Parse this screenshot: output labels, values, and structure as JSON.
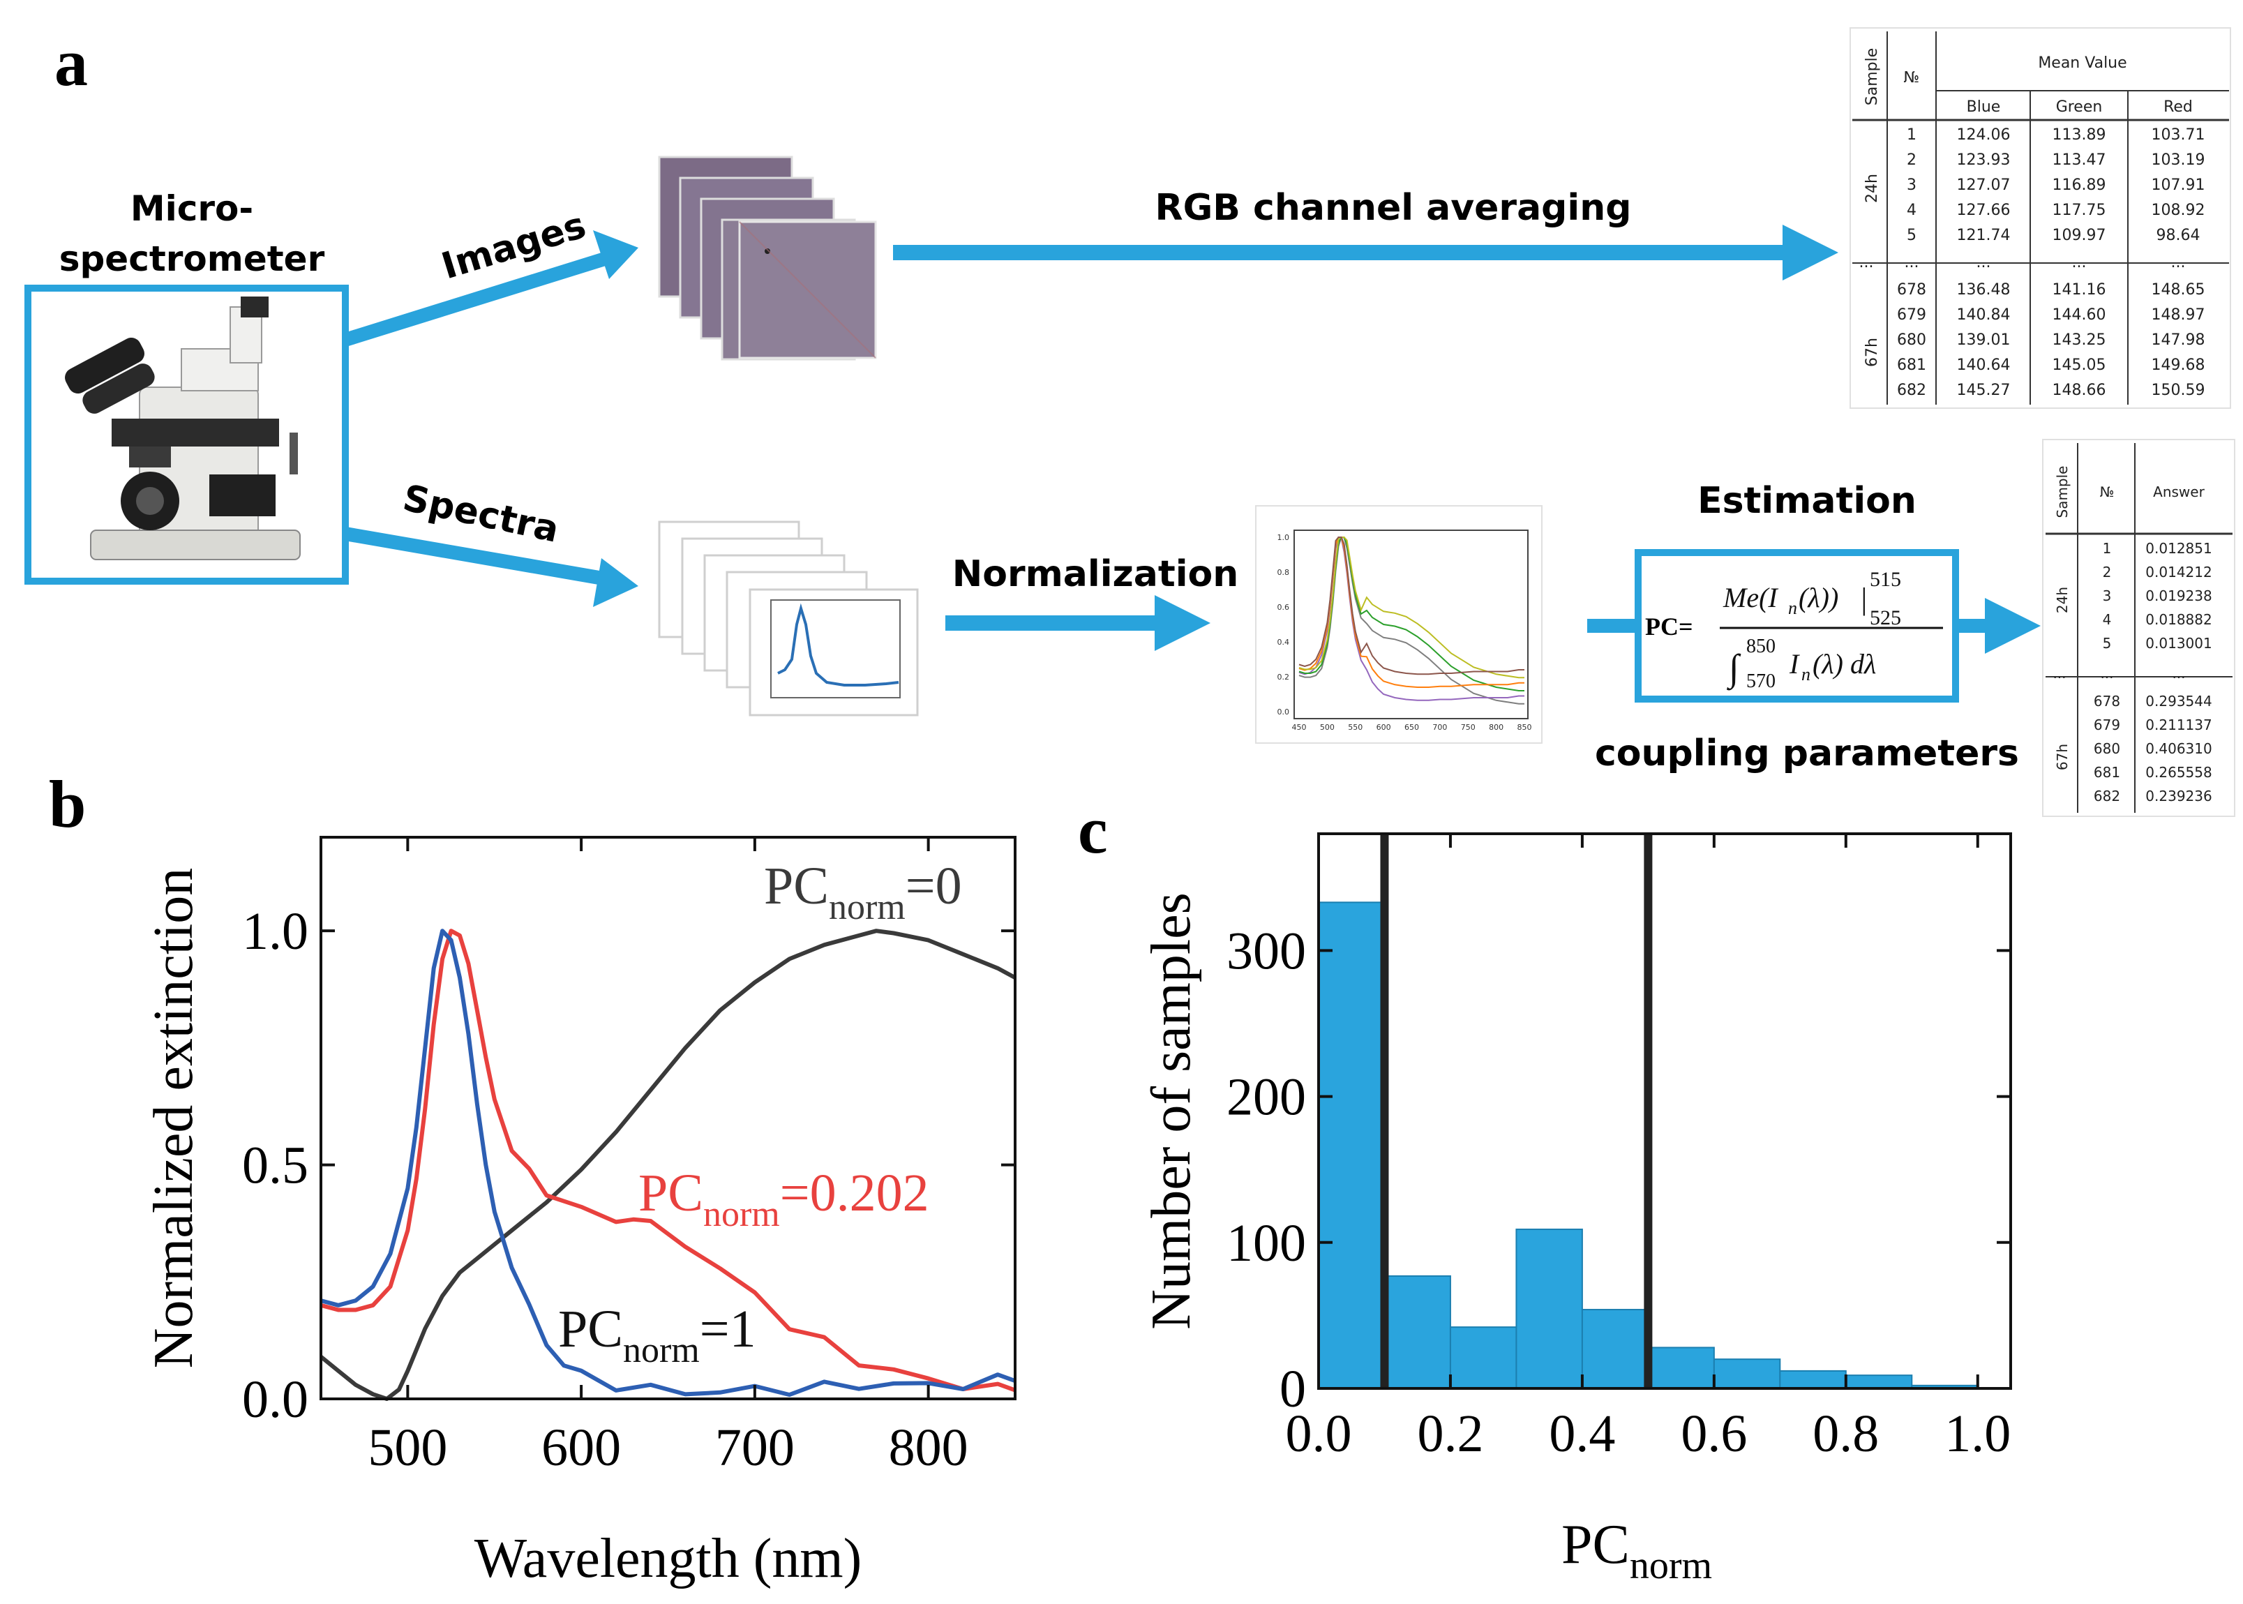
{
  "panels": {
    "a": "a",
    "b": "b",
    "c": "c"
  },
  "workflow": {
    "instrument_label_line1": "Micro-",
    "instrument_label_line2": "spectrometer",
    "images_label": "Images",
    "spectra_label": "Spectra",
    "rgb_label": "RGB channel averaging",
    "normalization_label": "Normalization",
    "estimation_label": "Estimation",
    "coupling_label": "coupling parameters",
    "formula": {
      "pc": "PC=",
      "me": "Me(I",
      "n": "n",
      "lam": "(λ))",
      "upper": "515",
      "lower": "525",
      "int_upper": "850",
      "int_lower": "570",
      "denom": "I",
      "dl": "(λ) dλ"
    },
    "spectrum_thumb_ticks": [
      "450",
      "500",
      "550",
      "600",
      "650",
      "700",
      "750",
      "800",
      "850"
    ],
    "spectrum_thumb_yticks": [
      "0.0",
      "0.2",
      "0.4",
      "0.6",
      "0.8",
      "1.0"
    ]
  },
  "rgb_table": {
    "sample_header": "Sample",
    "no_header": "№",
    "mean_header": "Mean Value",
    "cols": [
      "Blue",
      "Green",
      "Red"
    ],
    "group1": "24h",
    "group2": "67h",
    "rows_top": [
      [
        "1",
        "124.06",
        "113.89",
        "103.71"
      ],
      [
        "2",
        "123.93",
        "113.47",
        "103.19"
      ],
      [
        "3",
        "127.07",
        "116.89",
        "107.91"
      ],
      [
        "4",
        "127.66",
        "117.75",
        "108.92"
      ],
      [
        "5",
        "121.74",
        "109.97",
        "98.64"
      ]
    ],
    "ellipsis": "...",
    "rows_bottom": [
      [
        "678",
        "136.48",
        "141.16",
        "148.65"
      ],
      [
        "679",
        "140.84",
        "144.60",
        "148.97"
      ],
      [
        "680",
        "139.01",
        "143.25",
        "147.98"
      ],
      [
        "681",
        "140.64",
        "145.05",
        "149.68"
      ],
      [
        "682",
        "145.27",
        "148.66",
        "150.59"
      ]
    ]
  },
  "answer_table": {
    "sample_header": "Sample",
    "no_header": "№",
    "answer_header": "Answer",
    "group1": "24h",
    "group2": "67h",
    "ellipsis": "...",
    "rows_top": [
      [
        "1",
        "0.012851"
      ],
      [
        "2",
        "0.014212"
      ],
      [
        "3",
        "0.019238"
      ],
      [
        "4",
        "0.018882"
      ],
      [
        "5",
        "0.013001"
      ]
    ],
    "rows_bottom": [
      [
        "678",
        "0.293544"
      ],
      [
        "679",
        "0.211137"
      ],
      [
        "680",
        "0.406310"
      ],
      [
        "681",
        "0.265558"
      ],
      [
        "682",
        "0.239236"
      ]
    ]
  },
  "chart_data": [
    {
      "type": "line",
      "xlabel": "Wavelength (nm)",
      "ylabel": "Normalized extinction",
      "xlim": [
        450,
        850
      ],
      "ylim": [
        0.0,
        1.2
      ],
      "xticks": [
        "500",
        "600",
        "700",
        "800"
      ],
      "yticks": [
        "0.0",
        "0.5",
        "1.0"
      ],
      "series": [
        {
          "name": "PC_norm=0",
          "label": {
            "pre": "PC",
            "sub": "norm",
            "post": "=0"
          },
          "color": "#3a3a3a",
          "x": [
            450,
            460,
            470,
            480,
            488,
            495,
            500,
            510,
            520,
            530,
            540,
            550,
            560,
            580,
            600,
            620,
            640,
            660,
            680,
            700,
            720,
            740,
            760,
            770,
            780,
            800,
            820,
            840,
            850
          ],
          "y": [
            0.09,
            0.06,
            0.03,
            0.01,
            0.0,
            0.02,
            0.06,
            0.15,
            0.22,
            0.27,
            0.3,
            0.33,
            0.36,
            0.42,
            0.49,
            0.57,
            0.66,
            0.75,
            0.83,
            0.89,
            0.94,
            0.97,
            0.99,
            1.0,
            0.995,
            0.98,
            0.95,
            0.92,
            0.9
          ]
        },
        {
          "name": "PC_norm=0.202",
          "label": {
            "pre": "PC",
            "sub": "norm",
            "post": "=0.202"
          },
          "color": "#e8413e",
          "x": [
            450,
            460,
            470,
            480,
            490,
            500,
            505,
            510,
            515,
            520,
            525,
            530,
            535,
            540,
            545,
            550,
            560,
            570,
            580,
            600,
            620,
            630,
            640,
            660,
            680,
            700,
            720,
            740,
            760,
            780,
            800,
            820,
            840,
            850
          ],
          "y": [
            0.2,
            0.19,
            0.19,
            0.2,
            0.24,
            0.36,
            0.47,
            0.62,
            0.8,
            0.94,
            1.0,
            0.99,
            0.93,
            0.83,
            0.73,
            0.64,
            0.53,
            0.48,
            0.44,
            0.4,
            0.39,
            0.38,
            0.37,
            0.33,
            0.28,
            0.22,
            0.16,
            0.12,
            0.08,
            0.06,
            0.04,
            0.03,
            0.02,
            0.02
          ]
        },
        {
          "name": "PC_norm=1",
          "label": {
            "pre": "PC",
            "sub": "norm",
            "post": "=1"
          },
          "color": "#2d5fb3",
          "x": [
            450,
            460,
            470,
            480,
            490,
            500,
            505,
            510,
            515,
            520,
            525,
            530,
            535,
            540,
            545,
            550,
            560,
            570,
            580,
            590,
            600,
            620,
            640,
            660,
            680,
            700,
            720,
            740,
            760,
            780,
            800,
            820,
            840,
            850
          ],
          "y": [
            0.21,
            0.2,
            0.21,
            0.24,
            0.31,
            0.45,
            0.58,
            0.75,
            0.92,
            1.0,
            0.98,
            0.9,
            0.78,
            0.63,
            0.5,
            0.4,
            0.28,
            0.19,
            0.12,
            0.08,
            0.05,
            0.03,
            0.02,
            0.015,
            0.015,
            0.02,
            0.02,
            0.025,
            0.03,
            0.03,
            0.03,
            0.03,
            0.04,
            0.04
          ]
        }
      ]
    },
    {
      "type": "bar",
      "xlabel": {
        "pre": "PC",
        "sub": "norm"
      },
      "ylabel": "Number of samples",
      "xlim": [
        0.0,
        1.05
      ],
      "ylim": [
        0,
        380
      ],
      "xticks": [
        "0.0",
        "0.2",
        "0.4",
        "0.6",
        "0.8",
        "1.0"
      ],
      "yticks": [
        "0",
        "100",
        "200",
        "300"
      ],
      "bin_width": 0.1,
      "bin_starts": [
        0.0,
        0.1,
        0.2,
        0.3,
        0.4,
        0.5,
        0.6,
        0.7,
        0.8,
        0.9
      ],
      "values": [
        333,
        77,
        42,
        109,
        54,
        28,
        20,
        12,
        9,
        2
      ],
      "vlines": [
        0.1,
        0.5
      ],
      "bar_color": "#2aa4dd"
    }
  ]
}
